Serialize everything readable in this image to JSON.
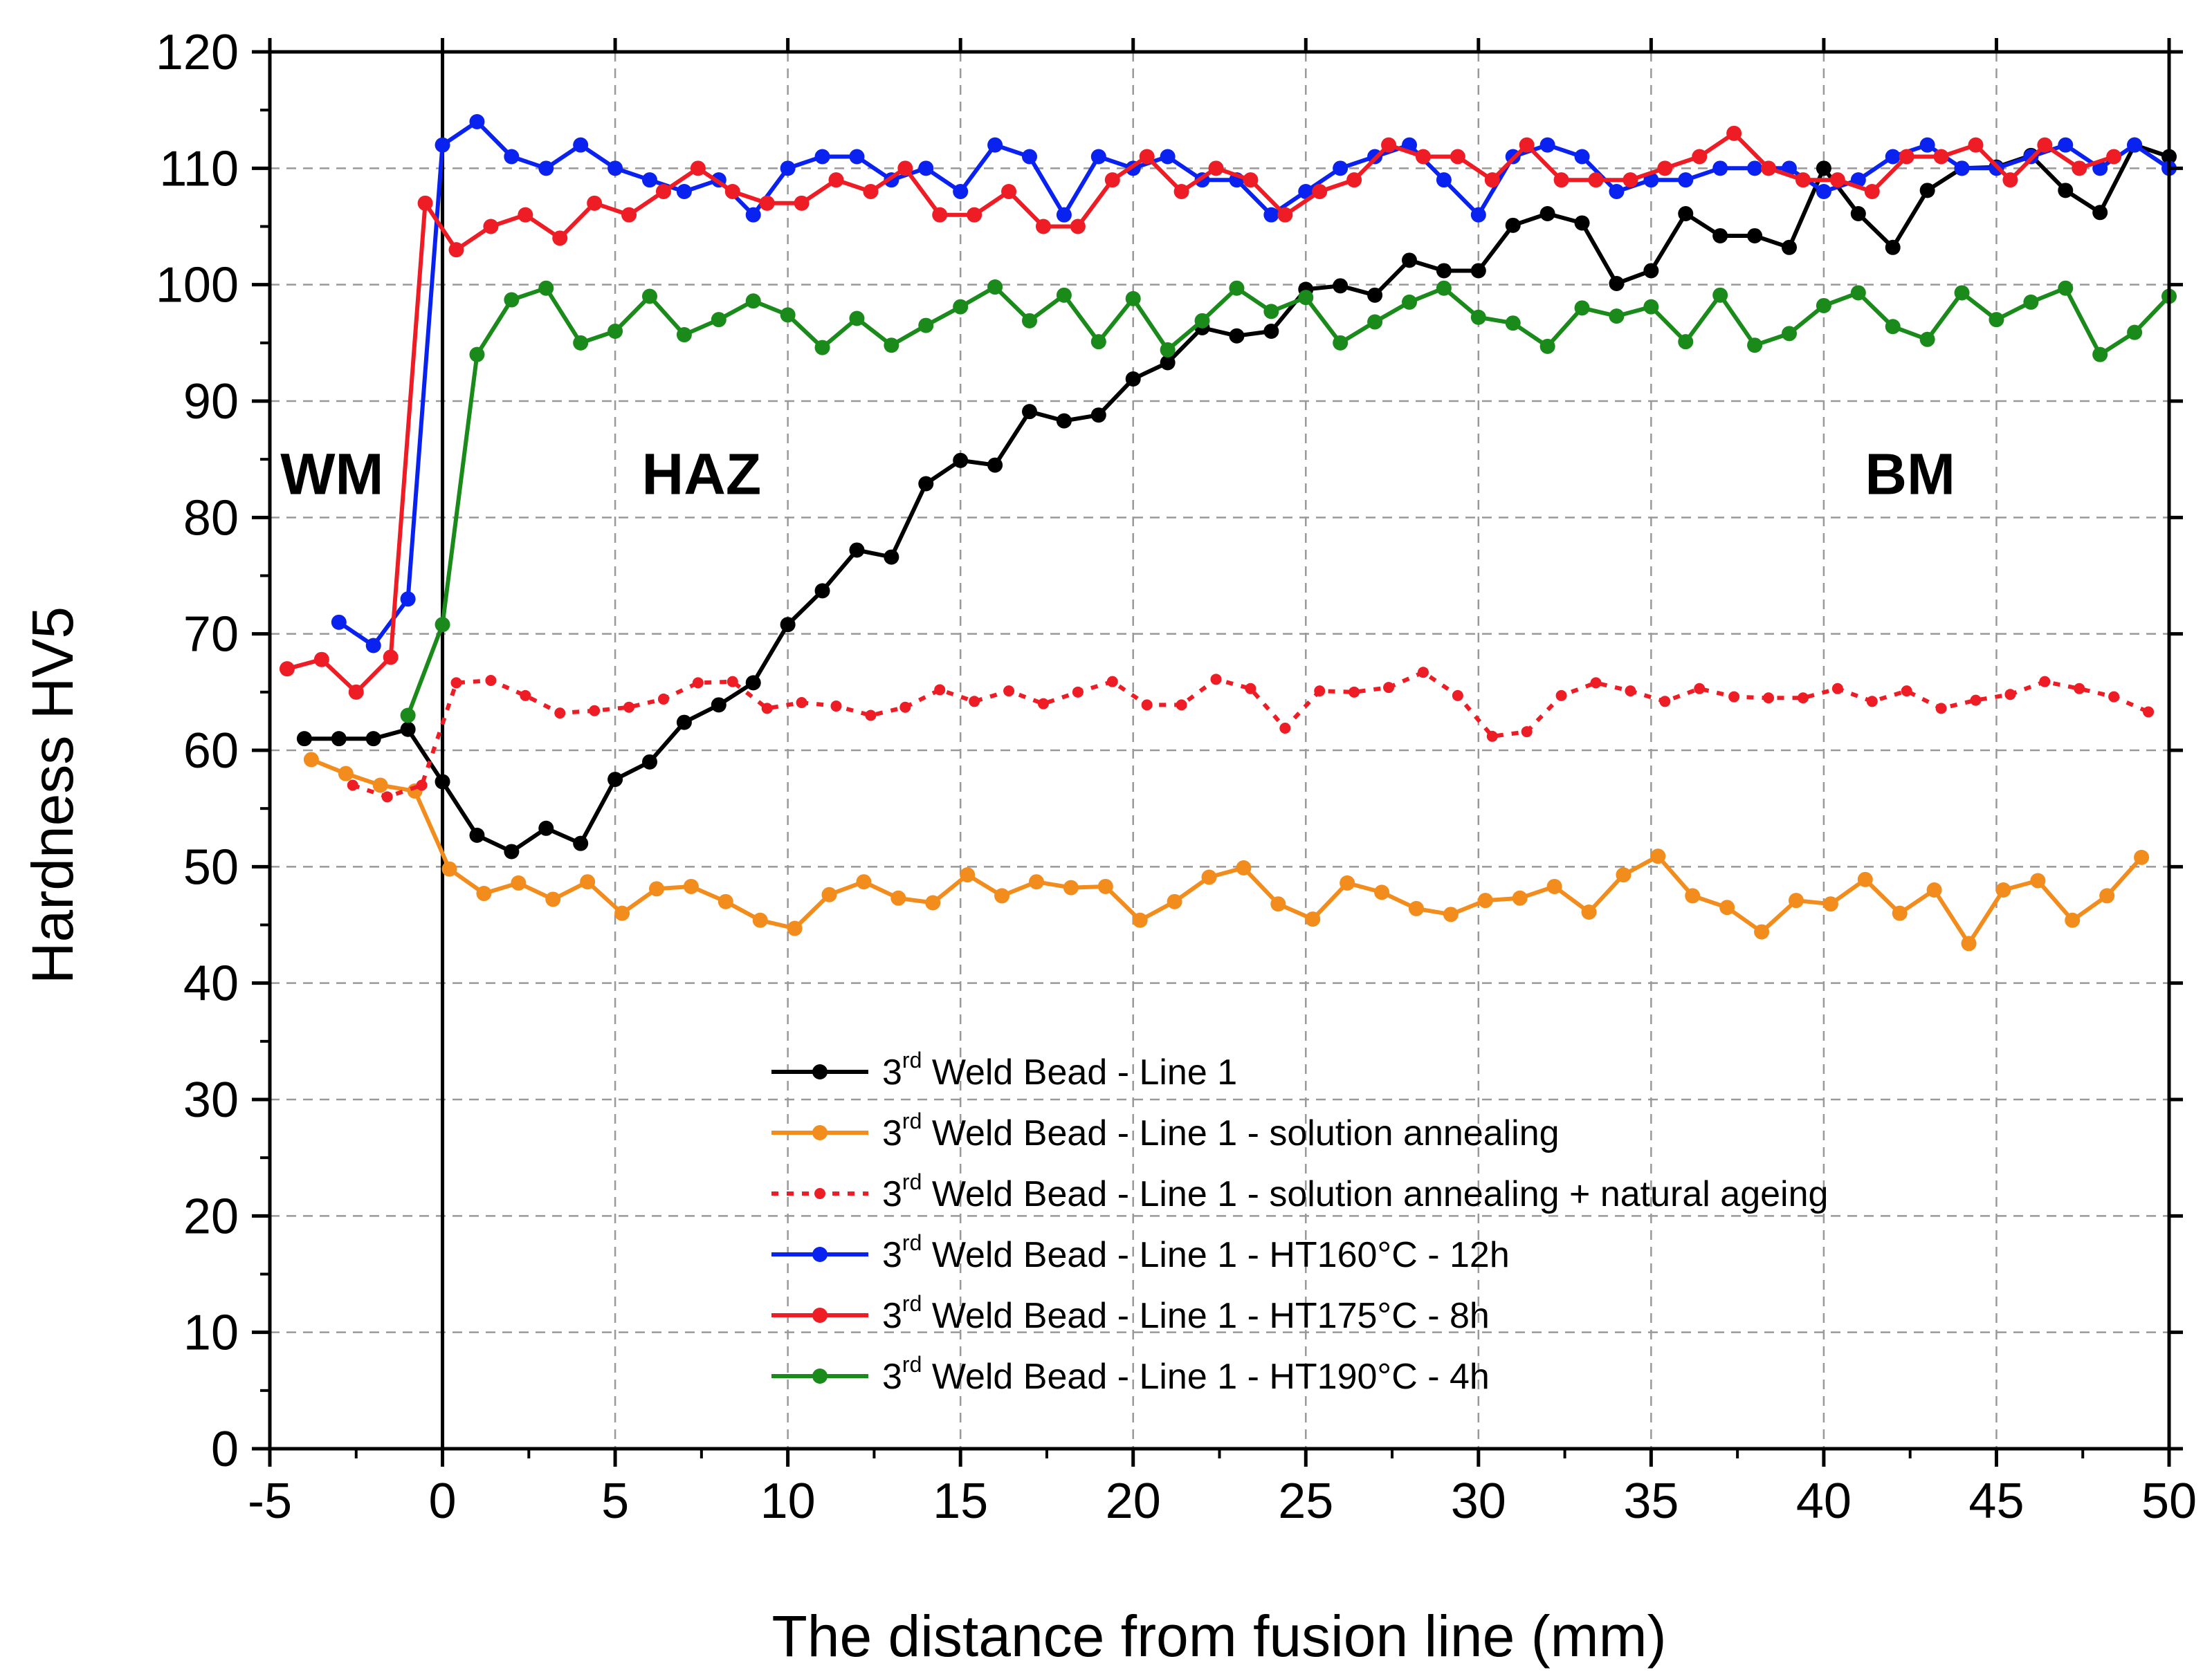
{
  "chart_data": {
    "type": "line",
    "title": "",
    "xlabel": "The distance from fusion line (mm)",
    "ylabel": "Hardness HV5",
    "xlim": [
      -5,
      50
    ],
    "ylim": [
      0,
      120
    ],
    "xticks": [
      -5,
      0,
      5,
      10,
      15,
      20,
      25,
      30,
      35,
      40,
      45,
      50
    ],
    "yticks": [
      0,
      10,
      20,
      30,
      40,
      50,
      60,
      70,
      80,
      90,
      100,
      110,
      120
    ],
    "grid": true,
    "fusion_line_x": 0,
    "legend_position": "bottom-right",
    "annotations": [
      {
        "text": "WM",
        "x": -3.2,
        "y": 82
      },
      {
        "text": "HAZ",
        "x": 7.5,
        "y": 82
      },
      {
        "text": "BM",
        "x": 42.5,
        "y": 82
      }
    ],
    "series": [
      {
        "name": "3rd Weld Bead - Line 1",
        "legend_prefix": "3",
        "legend_sup": "rd",
        "legend_rest": " Weld Bead - Line 1",
        "color": "#000000",
        "dashed": false,
        "x": [
          -4,
          -3,
          -2,
          -1,
          0,
          1,
          2,
          3,
          4,
          5,
          6,
          7,
          8,
          9,
          10,
          11,
          12,
          13,
          14,
          15,
          16,
          17,
          18,
          19,
          20,
          21,
          22,
          23,
          24,
          25,
          26,
          27,
          28,
          29,
          30,
          31,
          32,
          33,
          34,
          35,
          36,
          37,
          38,
          39,
          40,
          41,
          42,
          43,
          44,
          45,
          46,
          47,
          48,
          49,
          50
        ],
        "y": [
          61,
          61,
          61,
          61.8,
          57.3,
          52.7,
          51.3,
          53.3,
          52,
          57.5,
          59,
          62.4,
          63.9,
          65.8,
          70.8,
          73.7,
          77.2,
          76.6,
          82.9,
          84.9,
          84.5,
          89.1,
          88.3,
          88.8,
          91.9,
          93.3,
          96.3,
          95.6,
          96,
          99.6,
          99.9,
          99.1,
          102.1,
          101.2,
          101.2,
          105.1,
          106.1,
          105.3,
          100.1,
          101.2,
          106.1,
          104.2,
          104.2,
          103.2,
          110,
          106.1,
          103.2,
          108.1,
          110,
          110.1,
          111.1,
          108.1,
          106.2,
          112,
          111
        ]
      },
      {
        "name": "3rd Weld Bead - Line 1 - solution annealing",
        "legend_prefix": "3",
        "legend_sup": "rd",
        "legend_rest": " Weld Bead - Line 1 - solution annealing",
        "color": "#f28c1c",
        "dashed": false,
        "x": [
          -3.8,
          -2.8,
          -1.8,
          -0.8,
          0.2,
          1.2,
          2.2,
          3.2,
          4.2,
          5.2,
          6.2,
          7.2,
          8.2,
          9.2,
          10.2,
          11.2,
          12.2,
          13.2,
          14.2,
          15.2,
          16.2,
          17.2,
          18.2,
          19.2,
          20.2,
          21.2,
          22.2,
          23.2,
          24.2,
          25.2,
          26.2,
          27.2,
          28.2,
          29.2,
          30.2,
          31.2,
          32.2,
          33.2,
          34.2,
          35.2,
          36.2,
          37.2,
          38.2,
          39.2,
          40.2,
          41.2,
          42.2,
          43.2,
          44.2,
          45.2,
          46.2,
          47.2,
          48.2,
          49.2
        ],
        "y": [
          59.2,
          58,
          57,
          56.5,
          49.8,
          47.7,
          48.6,
          47.2,
          48.7,
          46,
          48.1,
          48.3,
          47,
          45.4,
          44.7,
          47.6,
          48.7,
          47.3,
          46.9,
          49.3,
          47.5,
          48.7,
          48.2,
          48.3,
          45.4,
          47,
          49.1,
          49.9,
          46.8,
          45.5,
          48.6,
          47.8,
          46.4,
          45.9,
          47.1,
          47.3,
          48.3,
          46.1,
          49.3,
          50.9,
          47.5,
          46.5,
          44.4,
          47.1,
          46.8,
          48.9,
          46,
          48,
          43.4,
          48,
          48.8,
          45.4,
          47.5,
          50.8
        ]
      },
      {
        "name": "3rd Weld Bead - Line 1 - solution annealing + natural ageing",
        "legend_prefix": "3",
        "legend_sup": "rd",
        "legend_rest": " Weld Bead - Line 1 - solution annealing + natural ageing",
        "color": "#ee1c24",
        "dashed": true,
        "x": [
          -2.6,
          -1.6,
          -0.6,
          0.4,
          1.4,
          2.4,
          3.4,
          4.4,
          5.4,
          6.4,
          7.4,
          8.4,
          9.4,
          10.4,
          11.4,
          12.4,
          13.4,
          14.4,
          15.4,
          16.4,
          17.4,
          18.4,
          19.4,
          20.4,
          21.4,
          22.4,
          23.4,
          24.4,
          25.4,
          26.4,
          27.4,
          28.4,
          29.4,
          30.4,
          31.4,
          32.4,
          33.4,
          34.4,
          35.4,
          36.4,
          37.4,
          38.4,
          39.4,
          40.4,
          41.4,
          42.4,
          43.4,
          44.4,
          45.4,
          46.4,
          47.4,
          48.4,
          49.4
        ],
        "y": [
          57,
          56,
          57,
          65.8,
          66,
          64.7,
          63.2,
          63.4,
          63.7,
          64.4,
          65.8,
          65.9,
          63.6,
          64.1,
          63.8,
          63,
          63.7,
          65.2,
          64.2,
          65.1,
          64,
          65,
          65.9,
          63.9,
          63.9,
          66.1,
          65.3,
          61.9,
          65.1,
          65,
          65.4,
          66.7,
          64.7,
          61.2,
          61.6,
          64.7,
          65.8,
          65.1,
          64.2,
          65.3,
          64.6,
          64.5,
          64.5,
          65.3,
          64.2,
          65.1,
          63.6,
          64.3,
          64.8,
          65.9,
          65.3,
          64.6,
          63.3
        ]
      },
      {
        "name": "3rd Weld Bead - Line 1 - HT160°C - 12h",
        "legend_prefix": "3",
        "legend_sup": "rd",
        "legend_rest": " Weld Bead - Line 1 - HT160°C - 12h",
        "color": "#0a22f0",
        "dashed": false,
        "x": [
          -3,
          -2,
          -1,
          0,
          1,
          2,
          3,
          4,
          5,
          6,
          7,
          8,
          9,
          10,
          11,
          12,
          13,
          14,
          15,
          16,
          17,
          18,
          19,
          20,
          21,
          22,
          23,
          24,
          25,
          26,
          27,
          28,
          29,
          30,
          31,
          32,
          33,
          34,
          35,
          36,
          37,
          38,
          39,
          40,
          41,
          42,
          43,
          44,
          45,
          46,
          47,
          48,
          49,
          50
        ],
        "y": [
          71,
          69,
          73,
          112,
          114,
          111,
          110,
          112,
          110,
          109,
          108,
          109,
          106,
          110,
          111,
          111,
          109,
          110,
          108,
          112,
          111,
          106,
          111,
          110,
          111,
          109,
          109,
          106,
          108,
          110,
          111,
          112,
          109,
          106,
          111,
          112,
          111,
          108,
          109,
          109,
          110,
          110,
          110,
          108,
          109,
          111,
          112,
          110,
          110,
          111,
          112,
          110,
          112,
          110
        ]
      },
      {
        "name": "3rd Weld Bead - Line 1 - HT175°C - 8h",
        "legend_prefix": "3",
        "legend_sup": "rd",
        "legend_rest": " Weld Bead - Line 1 - HT175°C - 8h",
        "color": "#ee1c24",
        "dashed": false,
        "x": [
          -4.5,
          -3.5,
          -2.5,
          -1.5,
          -0.5,
          0.4,
          1.4,
          2.4,
          3.4,
          4.4,
          5.4,
          6.4,
          7.4,
          8.4,
          9.4,
          10.4,
          11.4,
          12.4,
          13.4,
          14.4,
          15.4,
          16.4,
          17.4,
          18.4,
          19.4,
          20.4,
          21.4,
          22.4,
          23.4,
          24.4,
          25.4,
          26.4,
          27.4,
          28.4,
          29.4,
          30.4,
          31.4,
          32.4,
          33.4,
          34.4,
          35.4,
          36.4,
          37.4,
          38.4,
          39.4,
          40.4,
          41.4,
          42.4,
          43.4,
          44.4,
          45.4,
          46.4,
          47.4,
          48.4
        ],
        "y": [
          67,
          67.8,
          65,
          68,
          107,
          103,
          105,
          106,
          104,
          107,
          106,
          108,
          110,
          108,
          107,
          107,
          109,
          108,
          110,
          106,
          106,
          108,
          105,
          105,
          109,
          111,
          108,
          110,
          109,
          106,
          108,
          109,
          112,
          111,
          111,
          109,
          112,
          109,
          109,
          109,
          110,
          111,
          113,
          110,
          109,
          109,
          108,
          111,
          111,
          112,
          109,
          112,
          110,
          111
        ]
      },
      {
        "name": "3rd Weld Bead - Line 1 - HT190°C - 4h",
        "legend_prefix": "3",
        "legend_sup": "rd",
        "legend_rest": " Weld Bead - Line 1 - HT190°C - 4h",
        "color": "#1a8a1a",
        "dashed": false,
        "x": [
          -1,
          0,
          1,
          2,
          3,
          4,
          5,
          6,
          7,
          8,
          9,
          10,
          11,
          12,
          13,
          14,
          15,
          16,
          17,
          18,
          19,
          20,
          21,
          22,
          23,
          24,
          25,
          26,
          27,
          28,
          29,
          30,
          31,
          32,
          33,
          34,
          35,
          36,
          37,
          38,
          39,
          40,
          41,
          42,
          43,
          44,
          45,
          46,
          47,
          48,
          49,
          50
        ],
        "y": [
          63,
          70.8,
          94,
          98.7,
          99.7,
          95,
          96,
          99,
          95.7,
          97,
          98.6,
          97.4,
          94.6,
          97.1,
          94.8,
          96.5,
          98.1,
          99.8,
          96.9,
          99.1,
          95.1,
          98.8,
          94.4,
          96.9,
          99.7,
          97.7,
          98.9,
          95,
          96.8,
          98.5,
          99.7,
          97.2,
          96.7,
          94.7,
          98,
          97.3,
          98.1,
          95.1,
          99.1,
          94.8,
          95.8,
          98.2,
          99.3,
          96.4,
          95.3,
          99.3,
          97,
          98.5,
          99.7,
          94,
          95.9,
          99
        ]
      }
    ]
  }
}
